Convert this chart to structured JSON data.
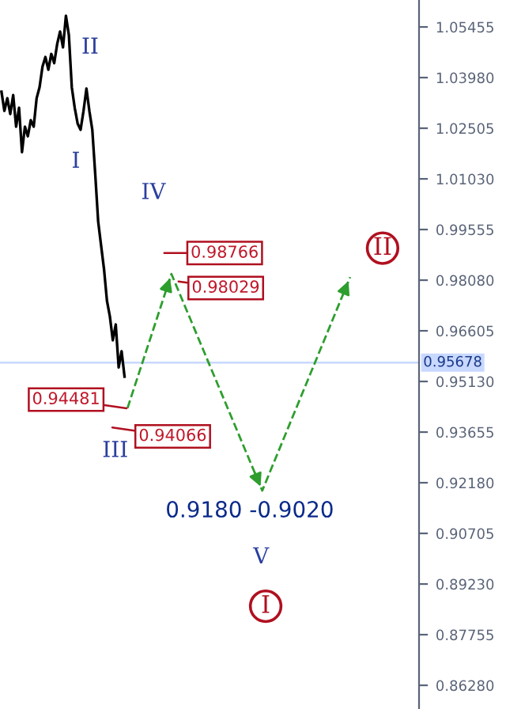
{
  "chart_data": {
    "type": "line",
    "categories": [
      null,
      null,
      null,
      null,
      null,
      null,
      null,
      null,
      null,
      null,
      null,
      null,
      null,
      null,
      null,
      null,
      null,
      null,
      null,
      null,
      null,
      null,
      null,
      null,
      null,
      null,
      null,
      null,
      null,
      null,
      null,
      null,
      null,
      null,
      null,
      null,
      null,
      null,
      null,
      null,
      null,
      null,
      null,
      null,
      null,
      null,
      null,
      null,
      null,
      null,
      null,
      null,
      null,
      null,
      null,
      null,
      null,
      null,
      null,
      null,
      null,
      null,
      null,
      null,
      null,
      null,
      null,
      null,
      null,
      null,
      null,
      null,
      null,
      null,
      null,
      null,
      null,
      null,
      null,
      null,
      null,
      null,
      null,
      null,
      null,
      null,
      null,
      null,
      null,
      null,
      null,
      null,
      null,
      null,
      null,
      null,
      null,
      null,
      null,
      null,
      null,
      null,
      null,
      null,
      null,
      null,
      null,
      null,
      null,
      null,
      null,
      null,
      null,
      null,
      null,
      null,
      null,
      null,
      null,
      null,
      null,
      null,
      null,
      null,
      null,
      null,
      null,
      null,
      null,
      null,
      null,
      null,
      null,
      null,
      null,
      null,
      null,
      null,
      null,
      null,
      null,
      null,
      null
    ],
    "series": [
      {
        "color": "#000000",
        "line_style": "solid",
        "values": [
          1.0357,
          1.0301,
          1.0338,
          1.0292,
          1.0347,
          1.0255,
          1.031,
          1.0181,
          1.0255,
          1.0227,
          1.0274,
          1.0255,
          1.0338,
          1.037,
          1.043,
          1.0458,
          1.0421,
          1.0467,
          1.044,
          1.0495,
          1.0532,
          1.0486,
          1.0578,
          1.0522,
          1.037,
          1.031,
          1.0264,
          1.0246,
          1.0301,
          1.0366,
          1.0301,
          1.0246,
          1.0117,
          0.9979,
          0.9909,
          0.984,
          0.9748,
          0.9702,
          0.9633,
          0.9679,
          0.9554,
          0.9601,
          0.9527,
          null,
          null,
          null,
          null,
          null,
          null,
          null,
          null,
          null,
          null,
          null,
          null,
          null,
          null,
          null,
          null,
          null,
          null,
          null,
          null,
          null,
          null,
          null,
          null,
          null,
          null,
          null,
          null,
          null,
          null,
          null,
          null,
          null,
          null,
          null,
          null,
          null,
          null,
          null,
          null,
          null,
          null,
          null,
          null,
          null,
          null,
          null,
          null,
          null,
          null,
          null,
          null,
          null,
          null,
          null,
          null,
          null,
          null,
          null,
          null,
          null,
          null,
          null,
          null,
          null,
          null,
          null,
          null,
          null,
          null,
          null,
          null,
          null,
          null,
          null,
          null,
          null,
          null,
          null,
          null,
          null,
          null,
          null,
          null,
          null,
          null,
          null,
          null,
          null,
          null,
          null,
          null,
          null,
          null,
          null,
          null,
          null,
          null,
          null,
          null
        ]
      },
      {
        "color": "#2e9e2e",
        "line_style": "dashed",
        "values": [
          null,
          null,
          null,
          null,
          null,
          null,
          null,
          null,
          null,
          null,
          null,
          null,
          null,
          null,
          null,
          null,
          null,
          null,
          null,
          null,
          null,
          null,
          null,
          null,
          null,
          null,
          null,
          null,
          null,
          null,
          null,
          null,
          null,
          null,
          null,
          null,
          null,
          null,
          null,
          null,
          null,
          null,
          null,
          0.9435,
          null,
          null,
          null,
          null,
          null,
          null,
          null,
          null,
          null,
          null,
          null,
          null,
          null,
          null,
          0.9826,
          null,
          null,
          null,
          null,
          null,
          null,
          null,
          null,
          null,
          null,
          null,
          null,
          null,
          null,
          null,
          null,
          null,
          null,
          null,
          null,
          null,
          null,
          null,
          null,
          null,
          null,
          null,
          null,
          null,
          null,
          0.9195,
          null,
          null,
          null,
          null,
          null,
          null,
          null,
          null,
          null,
          null,
          null,
          null,
          null,
          null,
          null,
          null,
          null,
          null,
          null,
          null,
          null,
          null,
          null,
          null,
          null,
          null,
          null,
          null,
          null,
          0.9817,
          null,
          null,
          null,
          null,
          null,
          null,
          null,
          null,
          null,
          null,
          null,
          null,
          null,
          null,
          null,
          null,
          null,
          null,
          null,
          null,
          null,
          null,
          null
        ]
      }
    ],
    "ylim": [
      0.8559,
      1.0624
    ],
    "yticks": [
      {
        "value": 1.05455,
        "label": "1.05455"
      },
      {
        "value": 1.0398,
        "label": "1.03980"
      },
      {
        "value": 1.02505,
        "label": "1.02505"
      },
      {
        "value": 1.0103,
        "label": "1.01030"
      },
      {
        "value": 0.99555,
        "label": "0.99555"
      },
      {
        "value": 0.9808,
        "label": "0.98080"
      },
      {
        "value": 0.96605,
        "label": "0.96605"
      },
      {
        "value": 0.9513,
        "label": "0.95130"
      },
      {
        "value": 0.93655,
        "label": "0.93655"
      },
      {
        "value": 0.9218,
        "label": "0.92180"
      },
      {
        "value": 0.90705,
        "label": "0.90705"
      },
      {
        "value": 0.8923,
        "label": "0.89230"
      },
      {
        "value": 0.87755,
        "label": "0.87755"
      },
      {
        "value": 0.8628,
        "label": "0.86280"
      }
    ],
    "ref_lines": [
      {
        "axis": "y",
        "value": 0.95678,
        "label": "0.95678",
        "color": "#c8d8ff"
      }
    ],
    "annotations": [
      "I",
      "II",
      "III",
      "IV",
      "V",
      "0.98766",
      "0.98029",
      "0.94481",
      "0.94066",
      "0.9180 -0.9020",
      "II",
      "I"
    ]
  }
}
